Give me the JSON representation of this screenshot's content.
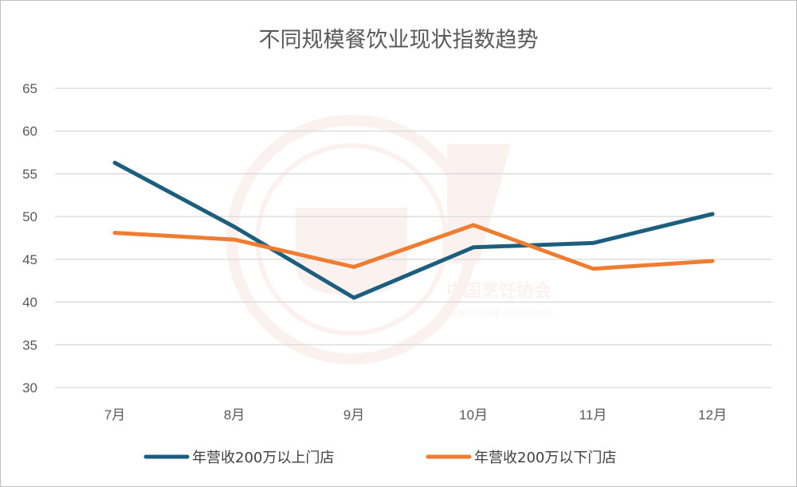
{
  "chart_data": {
    "type": "line",
    "title": "不同规模餐饮业现状指数趋势",
    "categories": [
      "7月",
      "8月",
      "9月",
      "10月",
      "11月",
      "12月"
    ],
    "series": [
      {
        "name": "年营收200万以上门店",
        "color": "#1b5e7e",
        "values": [
          56.3,
          48.8,
          40.5,
          46.4,
          46.9,
          50.3
        ]
      },
      {
        "name": "年营收200万以下门店",
        "color": "#ee7d31",
        "values": [
          48.1,
          47.3,
          44.1,
          49.0,
          43.9,
          44.8
        ]
      }
    ],
    "ylim": [
      30,
      65
    ],
    "yticks": [
      30,
      35,
      40,
      45,
      50,
      55,
      60,
      65
    ],
    "grid": true,
    "legend": "bottom",
    "xlabel": "",
    "ylabel": ""
  },
  "watermark": {
    "text": "中国烹饪协会",
    "subtext": "CHINA CUISINE ASSOCIATION",
    "color": "#e8a48a"
  }
}
